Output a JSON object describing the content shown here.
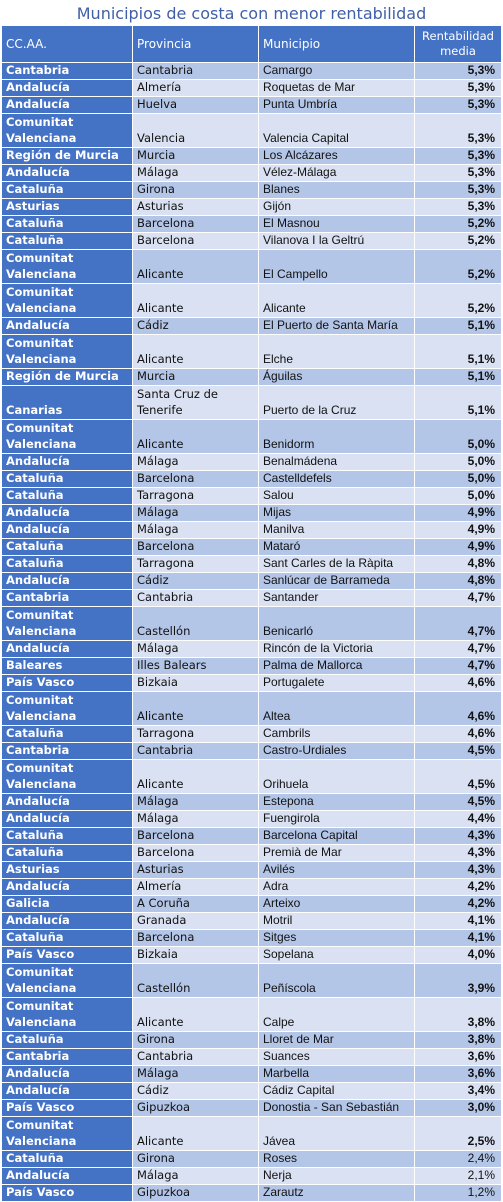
{
  "title": "Municipios de costa con menor rentabilidad",
  "headers": {
    "ccaa": "CC.AA.",
    "provincia": "Provincia",
    "municipio": "Municipio",
    "rentabilidad": "Rentabilidad media"
  },
  "rows": [
    {
      "ccaa": "Cantabria",
      "provincia": "Cantabria",
      "municipio": "Camargo",
      "rentabilidad": "5,3%"
    },
    {
      "ccaa": "Andalucía",
      "provincia": "Almería",
      "municipio": "Roquetas de Mar",
      "rentabilidad": "5,3%"
    },
    {
      "ccaa": "Andalucía",
      "provincia": "Huelva",
      "municipio": "Punta Umbría",
      "rentabilidad": "5,3%"
    },
    {
      "ccaa": "Comunitat Valenciana",
      "provincia": "Valencia",
      "municipio": "Valencia Capital",
      "rentabilidad": "5,3%"
    },
    {
      "ccaa": "Región de Murcia",
      "provincia": "Murcia",
      "municipio": "Los Alcázares",
      "rentabilidad": "5,3%"
    },
    {
      "ccaa": "Andalucía",
      "provincia": "Málaga",
      "municipio": "Vélez-Málaga",
      "rentabilidad": "5,3%"
    },
    {
      "ccaa": "Cataluña",
      "provincia": "Girona",
      "municipio": "Blanes",
      "rentabilidad": "5,3%"
    },
    {
      "ccaa": "Asturias",
      "provincia": "Asturias",
      "municipio": "Gijón",
      "rentabilidad": "5,3%"
    },
    {
      "ccaa": "Cataluña",
      "provincia": "Barcelona",
      "municipio": "El Masnou",
      "rentabilidad": "5,2%"
    },
    {
      "ccaa": "Cataluña",
      "provincia": "Barcelona",
      "municipio": "Vilanova I la Geltrú",
      "rentabilidad": "5,2%"
    },
    {
      "ccaa": "Comunitat Valenciana",
      "provincia": "Alicante",
      "municipio": "El Campello",
      "rentabilidad": "5,2%"
    },
    {
      "ccaa": "Comunitat Valenciana",
      "provincia": "Alicante",
      "municipio": "Alicante",
      "rentabilidad": "5,2%"
    },
    {
      "ccaa": "Andalucía",
      "provincia": "Cádiz",
      "municipio": "El Puerto de Santa María",
      "rentabilidad": "5,1%"
    },
    {
      "ccaa": "Comunitat Valenciana",
      "provincia": "Alicante",
      "municipio": "Elche",
      "rentabilidad": "5,1%"
    },
    {
      "ccaa": "Región de Murcia",
      "provincia": "Murcia",
      "municipio": "Águilas",
      "rentabilidad": "5,1%"
    },
    {
      "ccaa": "Canarias",
      "provincia": "Santa Cruz de Tenerife",
      "municipio": "Puerto de la Cruz",
      "rentabilidad": "5,1%"
    },
    {
      "ccaa": "Comunitat Valenciana",
      "provincia": "Alicante",
      "municipio": "Benidorm",
      "rentabilidad": "5,0%"
    },
    {
      "ccaa": "Andalucía",
      "provincia": "Málaga",
      "municipio": "Benalmádena",
      "rentabilidad": "5,0%"
    },
    {
      "ccaa": "Cataluña",
      "provincia": "Barcelona",
      "municipio": "Castelldefels",
      "rentabilidad": "5,0%"
    },
    {
      "ccaa": "Cataluña",
      "provincia": "Tarragona",
      "municipio": "Salou",
      "rentabilidad": "5,0%"
    },
    {
      "ccaa": "Andalucía",
      "provincia": "Málaga",
      "municipio": "Mijas",
      "rentabilidad": "4,9%"
    },
    {
      "ccaa": "Andalucía",
      "provincia": "Málaga",
      "municipio": "Manilva",
      "rentabilidad": "4,9%"
    },
    {
      "ccaa": "Cataluña",
      "provincia": "Barcelona",
      "municipio": "Mataró",
      "rentabilidad": "4,9%"
    },
    {
      "ccaa": "Cataluña",
      "provincia": "Tarragona",
      "municipio": "Sant Carles de la Ràpita",
      "rentabilidad": "4,8%"
    },
    {
      "ccaa": "Andalucía",
      "provincia": "Cádiz",
      "municipio": "Sanlúcar de Barrameda",
      "rentabilidad": "4,8%"
    },
    {
      "ccaa": "Cantabria",
      "provincia": "Cantabria",
      "municipio": "Santander",
      "rentabilidad": "4,7%"
    },
    {
      "ccaa": "Comunitat Valenciana",
      "provincia": "Castellón",
      "municipio": "Benicarló",
      "rentabilidad": "4,7%"
    },
    {
      "ccaa": "Andalucía",
      "provincia": "Málaga",
      "municipio": "Rincón de la Victoria",
      "rentabilidad": "4,7%"
    },
    {
      "ccaa": "Baleares",
      "provincia": "Illes Balears",
      "municipio": "Palma de Mallorca",
      "rentabilidad": "4,7%"
    },
    {
      "ccaa": "País Vasco",
      "provincia": "Bizkaia",
      "municipio": "Portugalete",
      "rentabilidad": "4,6%"
    },
    {
      "ccaa": "Comunitat Valenciana",
      "provincia": "Alicante",
      "municipio": "Altea",
      "rentabilidad": "4,6%"
    },
    {
      "ccaa": "Cataluña",
      "provincia": "Tarragona",
      "municipio": "Cambrils",
      "rentabilidad": "4,6%"
    },
    {
      "ccaa": "Cantabria",
      "provincia": "Cantabria",
      "municipio": "Castro-Urdiales",
      "rentabilidad": "4,5%"
    },
    {
      "ccaa": "Comunitat Valenciana",
      "provincia": "Alicante",
      "municipio": "Orihuela",
      "rentabilidad": "4,5%"
    },
    {
      "ccaa": "Andalucía",
      "provincia": "Málaga",
      "municipio": "Estepona",
      "rentabilidad": "4,5%"
    },
    {
      "ccaa": "Andalucía",
      "provincia": "Málaga",
      "municipio": "Fuengirola",
      "rentabilidad": "4,4%"
    },
    {
      "ccaa": "Cataluña",
      "provincia": "Barcelona",
      "municipio": "Barcelona Capital",
      "rentabilidad": "4,3%"
    },
    {
      "ccaa": "Cataluña",
      "provincia": "Barcelona",
      "municipio": "Premià de Mar",
      "rentabilidad": "4,3%"
    },
    {
      "ccaa": "Asturias",
      "provincia": "Asturias",
      "municipio": "Avilés",
      "rentabilidad": "4,3%"
    },
    {
      "ccaa": "Andalucía",
      "provincia": "Almería",
      "municipio": "Adra",
      "rentabilidad": "4,2%"
    },
    {
      "ccaa": "Galicia",
      "provincia": "A Coruña",
      "municipio": "Arteixo",
      "rentabilidad": "4,2%"
    },
    {
      "ccaa": "Andalucía",
      "provincia": "Granada",
      "municipio": "Motril",
      "rentabilidad": "4,1%"
    },
    {
      "ccaa": "Cataluña",
      "provincia": "Barcelona",
      "municipio": "Sitges",
      "rentabilidad": "4,1%"
    },
    {
      "ccaa": "País Vasco",
      "provincia": "Bizkaia",
      "municipio": "Sopelana",
      "rentabilidad": "4,0%"
    },
    {
      "ccaa": "Comunitat Valenciana",
      "provincia": "Castellón",
      "municipio": "Peñíscola",
      "rentabilidad": "3,9%"
    },
    {
      "ccaa": "Comunitat Valenciana",
      "provincia": "Alicante",
      "municipio": "Calpe",
      "rentabilidad": "3,8%"
    },
    {
      "ccaa": "Cataluña",
      "provincia": "Girona",
      "municipio": "Lloret de Mar",
      "rentabilidad": "3,8%"
    },
    {
      "ccaa": "Cantabria",
      "provincia": "Cantabria",
      "municipio": "Suances",
      "rentabilidad": "3,6%"
    },
    {
      "ccaa": "Andalucía",
      "provincia": "Málaga",
      "municipio": "Marbella",
      "rentabilidad": "3,6%"
    },
    {
      "ccaa": "Andalucía",
      "provincia": "Cádiz",
      "municipio": "Cádiz Capital",
      "rentabilidad": "3,4%"
    },
    {
      "ccaa": "País Vasco",
      "provincia": "Gipuzkoa",
      "municipio": "Donostia - San Sebastián",
      "rentabilidad": "3,0%"
    },
    {
      "ccaa": "Comunitat Valenciana",
      "provincia": "Alicante",
      "municipio": "Jávea",
      "rentabilidad": "2,5%"
    },
    {
      "ccaa": "Cataluña",
      "provincia": "Girona",
      "municipio": "Roses",
      "rentabilidad": "2,4%"
    },
    {
      "ccaa": "Andalucía",
      "provincia": "Málaga",
      "municipio": "Nerja",
      "rentabilidad": "2,1%"
    },
    {
      "ccaa": "País Vasco",
      "provincia": "Gipuzkoa",
      "municipio": "Zarautz",
      "rentabilidad": "1,2%"
    }
  ]
}
